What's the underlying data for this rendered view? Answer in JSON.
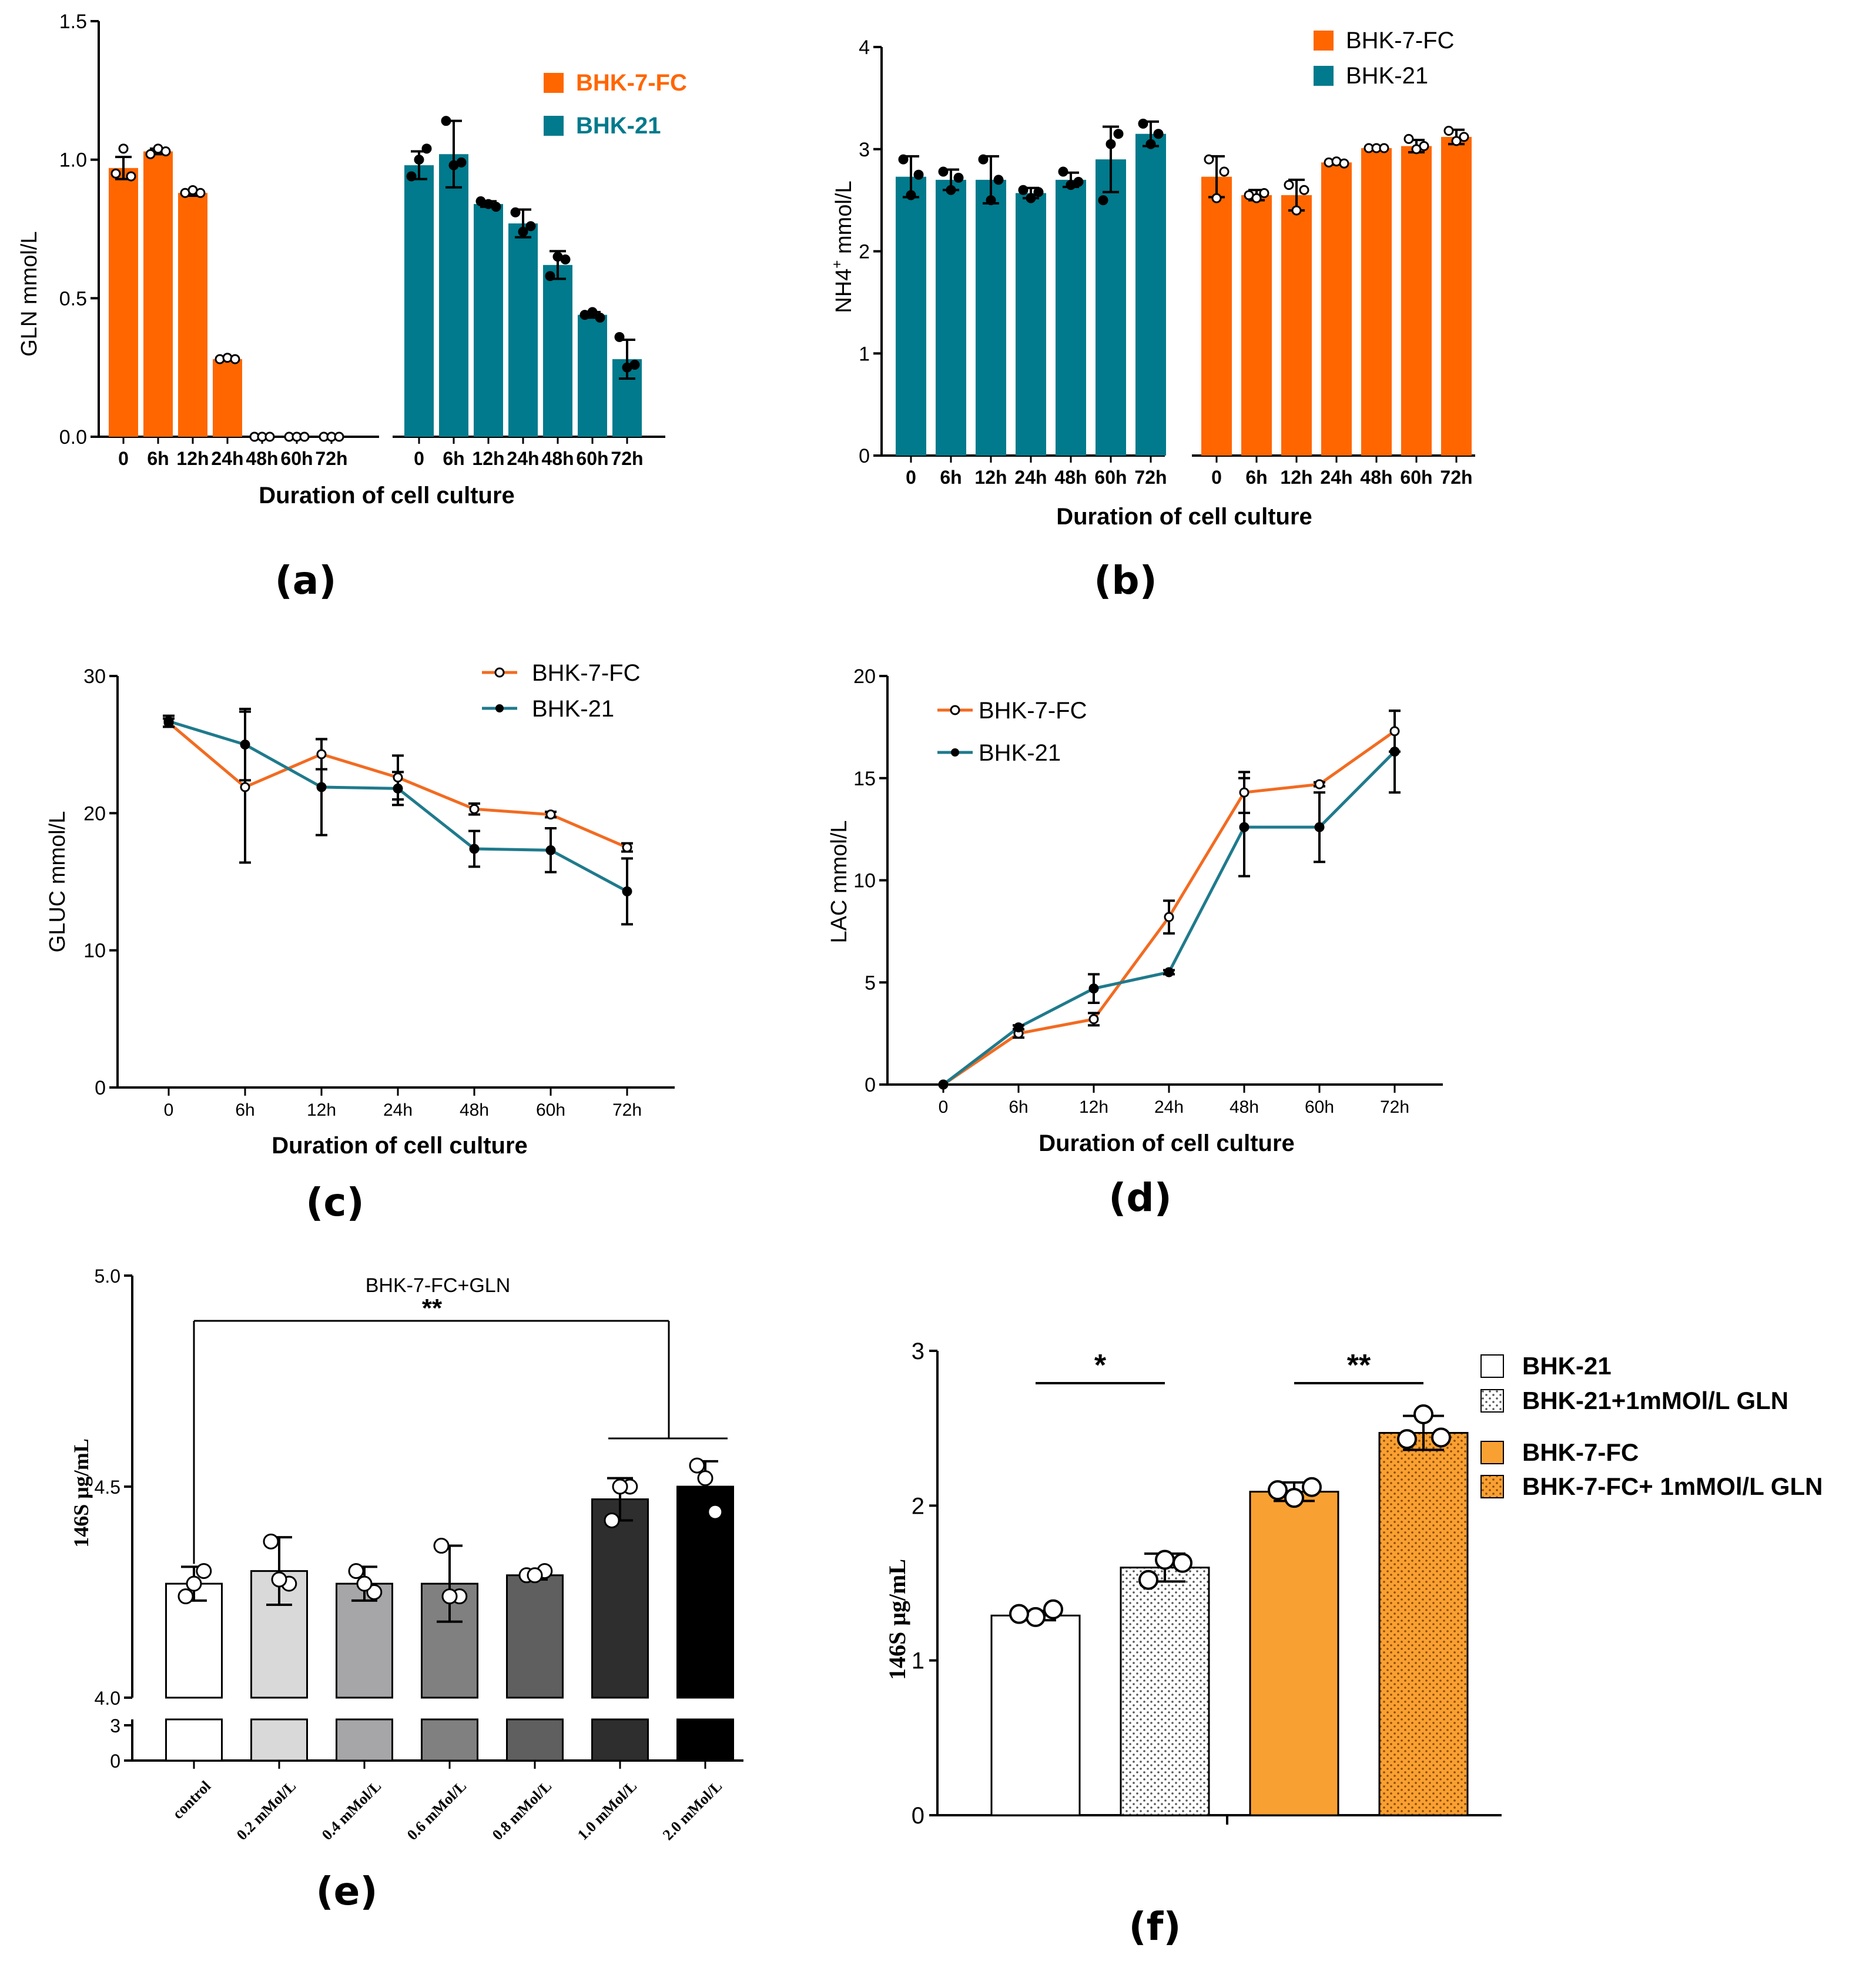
{
  "chart_data": [
    {
      "id": "a",
      "type": "bar",
      "panel_label": "(a)",
      "xlabel": "Duration of cell culture",
      "ylabel": "GLN  mmol/L",
      "ylim": [
        0,
        1.5
      ],
      "yticks": [
        0.0,
        0.5,
        1.0,
        1.5
      ],
      "ytick_labels": [
        "0.0",
        "0.5",
        "1.0",
        "1.5"
      ],
      "legend": [
        {
          "name": "BHK-7-FC",
          "color": "#FF6600"
        },
        {
          "name": "BHK-21",
          "color": "#007A8C"
        }
      ],
      "groups": [
        {
          "name": "BHK-7-FC",
          "color": "#FF6600",
          "categories": [
            "0",
            "6h",
            "12h",
            "24h",
            "48h",
            "60h",
            "72h"
          ],
          "values": [
            0.97,
            1.03,
            0.88,
            0.28,
            0.0,
            0.0,
            0.0
          ],
          "errors": [
            0.04,
            0.01,
            0.01,
            0.005,
            0.0,
            0.0,
            0.0
          ],
          "points": [
            [
              0.95,
              1.04,
              0.94
            ],
            [
              1.02,
              1.04,
              1.03
            ],
            [
              0.88,
              0.89,
              0.88
            ],
            [
              0.28,
              0.285,
              0.28
            ],
            [
              0.0,
              0.0,
              0.0
            ],
            [
              0.0,
              0.0,
              0.0
            ],
            [
              0.0,
              0.0,
              0.0
            ]
          ]
        },
        {
          "name": "BHK-21",
          "color": "#007A8C",
          "categories": [
            "0",
            "6h",
            "12h",
            "24h",
            "48h",
            "60h",
            "72h"
          ],
          "values": [
            0.98,
            1.02,
            0.84,
            0.77,
            0.62,
            0.44,
            0.28
          ],
          "errors": [
            0.05,
            0.12,
            0.01,
            0.05,
            0.05,
            0.01,
            0.07
          ],
          "points": [
            [
              0.94,
              1.0,
              1.04
            ],
            [
              1.14,
              0.98,
              0.99
            ],
            [
              0.85,
              0.84,
              0.83
            ],
            [
              0.81,
              0.74,
              0.76
            ],
            [
              0.58,
              0.65,
              0.64
            ],
            [
              0.44,
              0.45,
              0.43
            ],
            [
              0.36,
              0.25,
              0.26
            ]
          ]
        }
      ]
    },
    {
      "id": "b",
      "type": "bar",
      "panel_label": "(b)",
      "xlabel": "Duration of cell culture",
      "ylabel": "NH4",
      "ylabel_sup": "+",
      "ylabel_suffix": " mmol/L",
      "ylim": [
        0,
        4
      ],
      "yticks": [
        0,
        1,
        2,
        3,
        4
      ],
      "ytick_labels": [
        "0",
        "1",
        "2",
        "3",
        "4"
      ],
      "legend": [
        {
          "name": "BHK-7-FC",
          "color": "#FF6600"
        },
        {
          "name": "BHK-21",
          "color": "#007A8C"
        }
      ],
      "groups": [
        {
          "name": "BHK-21",
          "color": "#007A8C",
          "categories": [
            "0",
            "6h",
            "12h",
            "24h",
            "48h",
            "60h",
            "72h"
          ],
          "values": [
            2.73,
            2.7,
            2.7,
            2.57,
            2.7,
            2.9,
            3.15
          ],
          "errors": [
            0.2,
            0.1,
            0.23,
            0.05,
            0.07,
            0.32,
            0.12
          ],
          "points": [
            [
              2.9,
              2.55,
              2.75
            ],
            [
              2.78,
              2.6,
              2.72
            ],
            [
              2.9,
              2.5,
              2.7
            ],
            [
              2.6,
              2.52,
              2.58
            ],
            [
              2.78,
              2.65,
              2.68
            ],
            [
              2.5,
              3.05,
              3.15
            ],
            [
              3.25,
              3.05,
              3.15
            ]
          ]
        },
        {
          "name": "BHK-7-FC",
          "color": "#FF6600",
          "categories": [
            "0",
            "6h",
            "12h",
            "24h",
            "48h",
            "60h",
            "72h"
          ],
          "values": [
            2.73,
            2.55,
            2.55,
            2.87,
            3.01,
            3.03,
            3.12
          ],
          "errors": [
            0.2,
            0.05,
            0.15,
            0.02,
            0.01,
            0.06,
            0.07
          ],
          "points": [
            [
              2.9,
              2.52,
              2.78
            ],
            [
              2.55,
              2.52,
              2.57
            ],
            [
              2.65,
              2.4,
              2.6
            ],
            [
              2.87,
              2.88,
              2.86
            ],
            [
              3.01,
              3.01,
              3.01
            ],
            [
              3.1,
              3.0,
              3.03
            ],
            [
              3.18,
              3.08,
              3.12
            ]
          ]
        }
      ]
    },
    {
      "id": "c",
      "type": "line",
      "panel_label": "(c)",
      "xlabel": "Duration of cell culture",
      "ylabel": "GLUC  mmol/L",
      "categories": [
        "0",
        "6h",
        "12h",
        "24h",
        "48h",
        "60h",
        "72h"
      ],
      "ylim": [
        0,
        30
      ],
      "yticks": [
        0,
        10,
        20,
        30
      ],
      "ytick_labels": [
        "0",
        "10",
        "20",
        "30"
      ],
      "legend": [
        {
          "name": "BHK-7-FC",
          "color": "#F26B21",
          "marker": "open"
        },
        {
          "name": "BHK-21",
          "color": "#1F7A8C",
          "marker": "filled"
        }
      ],
      "series": [
        {
          "name": "BHK-7-FC",
          "color": "#F26B21",
          "marker": "open",
          "values": [
            26.6,
            21.9,
            24.3,
            22.6,
            20.3,
            19.9,
            17.5
          ],
          "errors": [
            0.3,
            5.5,
            1.1,
            1.6,
            0.4,
            0.2,
            0.3
          ]
        },
        {
          "name": "BHK-21",
          "color": "#1F7A8C",
          "marker": "filled",
          "values": [
            26.7,
            25.0,
            21.9,
            21.8,
            17.4,
            17.3,
            14.3
          ],
          "errors": [
            0.4,
            2.6,
            3.5,
            1.2,
            1.3,
            1.6,
            2.4
          ]
        }
      ]
    },
    {
      "id": "d",
      "type": "line",
      "panel_label": "(d)",
      "xlabel": "Duration of cell culture",
      "ylabel": "LAC  mmol/L",
      "categories": [
        "0",
        "6h",
        "12h",
        "24h",
        "48h",
        "60h",
        "72h"
      ],
      "ylim": [
        0,
        20
      ],
      "yticks": [
        0,
        5,
        10,
        15,
        20
      ],
      "ytick_labels": [
        "0",
        "5",
        "10",
        "15",
        "20"
      ],
      "legend": [
        {
          "name": "BHK-7-FC",
          "color": "#F26B21",
          "marker": "open"
        },
        {
          "name": "BHK-21",
          "color": "#1F7A8C",
          "marker": "filled"
        }
      ],
      "series": [
        {
          "name": "BHK-7-FC",
          "color": "#F26B21",
          "marker": "open",
          "values": [
            0.0,
            2.5,
            3.2,
            8.2,
            14.3,
            14.7,
            17.3
          ],
          "errors": [
            0.0,
            0.2,
            0.3,
            0.8,
            1.0,
            0.1,
            1.0
          ]
        },
        {
          "name": "BHK-21",
          "color": "#1F7A8C",
          "marker": "filled",
          "values": [
            0.0,
            2.8,
            4.7,
            5.5,
            12.6,
            12.6,
            16.3
          ],
          "errors": [
            0.0,
            0.1,
            0.7,
            0.1,
            2.4,
            1.7,
            2.0
          ]
        }
      ]
    },
    {
      "id": "e",
      "type": "bar",
      "panel_label": "(e)",
      "title": "BHK-7-FC+GLN",
      "ylabel": "146S μg/mL",
      "y_break": {
        "lower": [
          0,
          3
        ],
        "upper": [
          4.0,
          5.0
        ]
      },
      "yticks_upper": [
        4.0,
        4.5,
        5.0
      ],
      "ytick_labels_upper": [
        "4.0",
        "4.5",
        "5.0"
      ],
      "yticks_lower": [
        0,
        3
      ],
      "ytick_labels_lower": [
        "0",
        "3"
      ],
      "categories": [
        "control",
        "0.2 mMol/L",
        "0.4 mMol/L",
        "0.6 mMol/L",
        "0.8 mMol/L",
        "1.0 mMol/L",
        "2.0 mMol/L"
      ],
      "colors": [
        "#FFFFFF",
        "#D9D9D9",
        "#A6A6A8",
        "#808080",
        "#5F5F5F",
        "#2E2E2E",
        "#000000"
      ],
      "values": [
        4.27,
        4.3,
        4.27,
        4.27,
        4.29,
        4.47,
        4.5
      ],
      "errors": [
        0.04,
        0.08,
        0.04,
        0.09,
        0.01,
        0.05,
        0.06
      ],
      "points": [
        [
          4.24,
          4.3,
          4.27
        ],
        [
          4.37,
          4.27,
          4.28
        ],
        [
          4.3,
          4.25,
          4.27
        ],
        [
          4.36,
          4.24,
          4.24
        ],
        [
          4.29,
          4.3,
          4.29
        ],
        [
          4.42,
          4.5,
          4.5
        ],
        [
          4.55,
          4.44,
          4.52
        ]
      ],
      "significance": [
        {
          "label": "**",
          "from": "control",
          "to": [
            "1.0 mMol/L",
            "2.0 mMol/L"
          ]
        }
      ]
    },
    {
      "id": "f",
      "type": "bar",
      "panel_label": "(f)",
      "ylabel": "146S μg/mL",
      "ylim": [
        0,
        3
      ],
      "yticks": [
        0,
        1,
        2,
        3
      ],
      "ytick_labels": [
        "0",
        "1",
        "2",
        "3"
      ],
      "categories": [
        "BHK-21",
        "BHK-21+1mMOl/L GLN",
        "BHK-7-FC",
        "BHK-7-FC+ 1mMOl/L GLN"
      ],
      "fills": [
        "#FFFFFF",
        "dots-white",
        "#F9A033",
        "dots-orange"
      ],
      "values": [
        1.29,
        1.6,
        2.09,
        2.47
      ],
      "errors": [
        0.03,
        0.09,
        0.06,
        0.11
      ],
      "points": [
        [
          1.28,
          1.3,
          1.33
        ],
        [
          1.65,
          1.52,
          1.63
        ],
        [
          2.05,
          2.1,
          2.12
        ],
        [
          2.59,
          2.43,
          2.44
        ]
      ],
      "legend": [
        {
          "name": "BHK-21",
          "fill": "#FFFFFF"
        },
        {
          "name": "BHK-21+1mMOl/L GLN",
          "fill": "dots-white"
        },
        {
          "name": "BHK-7-FC",
          "fill": "#F9A033"
        },
        {
          "name": "BHK-7-FC+ 1mMOl/L GLN",
          "fill": "dots-orange"
        }
      ],
      "significance": [
        {
          "label": "*",
          "between": [
            0,
            1
          ]
        },
        {
          "label": "**",
          "between": [
            2,
            3
          ]
        }
      ]
    }
  ]
}
